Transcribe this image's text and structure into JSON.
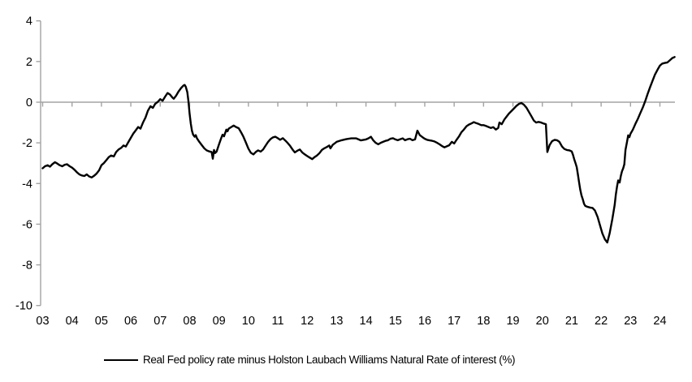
{
  "chart_data": {
    "type": "line",
    "title": "",
    "xlabel": "",
    "ylabel": "",
    "ylim": [
      -10,
      4
    ],
    "y_ticks": [
      4,
      2,
      0,
      -2,
      -4,
      -6,
      -8,
      -10
    ],
    "x_tick_labels": [
      "03",
      "04",
      "05",
      "06",
      "07",
      "08",
      "09",
      "10",
      "11",
      "12",
      "13",
      "14",
      "15",
      "16",
      "17",
      "18",
      "19",
      "20",
      "21",
      "22",
      "23",
      "24"
    ],
    "x_start_year": 2003,
    "grid": "zero-line-only",
    "legend_position": "bottom-left-of-center",
    "series": [
      {
        "name": "Real Fed policy rate minus Holston Laubach Williams Natural Rate of interest (%)",
        "color": "#000000",
        "points": [
          [
            2003.0,
            -3.25
          ],
          [
            2003.08,
            -3.15
          ],
          [
            2003.17,
            -3.1
          ],
          [
            2003.25,
            -3.17
          ],
          [
            2003.33,
            -3.05
          ],
          [
            2003.42,
            -2.95
          ],
          [
            2003.5,
            -3.02
          ],
          [
            2003.58,
            -3.1
          ],
          [
            2003.67,
            -3.15
          ],
          [
            2003.75,
            -3.08
          ],
          [
            2003.83,
            -3.05
          ],
          [
            2003.92,
            -3.15
          ],
          [
            2004.0,
            -3.22
          ],
          [
            2004.08,
            -3.32
          ],
          [
            2004.17,
            -3.45
          ],
          [
            2004.25,
            -3.55
          ],
          [
            2004.33,
            -3.6
          ],
          [
            2004.42,
            -3.63
          ],
          [
            2004.5,
            -3.55
          ],
          [
            2004.58,
            -3.65
          ],
          [
            2004.67,
            -3.7
          ],
          [
            2004.75,
            -3.62
          ],
          [
            2004.83,
            -3.52
          ],
          [
            2004.92,
            -3.35
          ],
          [
            2005.0,
            -3.1
          ],
          [
            2005.08,
            -3.0
          ],
          [
            2005.17,
            -2.85
          ],
          [
            2005.25,
            -2.7
          ],
          [
            2005.33,
            -2.62
          ],
          [
            2005.42,
            -2.67
          ],
          [
            2005.5,
            -2.45
          ],
          [
            2005.58,
            -2.33
          ],
          [
            2005.67,
            -2.25
          ],
          [
            2005.75,
            -2.13
          ],
          [
            2005.83,
            -2.18
          ],
          [
            2005.92,
            -1.95
          ],
          [
            2006.0,
            -1.75
          ],
          [
            2006.08,
            -1.55
          ],
          [
            2006.17,
            -1.38
          ],
          [
            2006.25,
            -1.22
          ],
          [
            2006.33,
            -1.3
          ],
          [
            2006.42,
            -0.98
          ],
          [
            2006.5,
            -0.75
          ],
          [
            2006.58,
            -0.42
          ],
          [
            2006.67,
            -0.2
          ],
          [
            2006.75,
            -0.28
          ],
          [
            2006.83,
            -0.08
          ],
          [
            2006.92,
            0.02
          ],
          [
            2007.0,
            0.15
          ],
          [
            2007.08,
            0.07
          ],
          [
            2007.17,
            0.28
          ],
          [
            2007.25,
            0.45
          ],
          [
            2007.33,
            0.38
          ],
          [
            2007.42,
            0.22
          ],
          [
            2007.46,
            0.17
          ],
          [
            2007.54,
            0.32
          ],
          [
            2007.62,
            0.52
          ],
          [
            2007.71,
            0.7
          ],
          [
            2007.79,
            0.82
          ],
          [
            2007.83,
            0.85
          ],
          [
            2007.87,
            0.76
          ],
          [
            2007.92,
            0.5
          ],
          [
            2007.96,
            0.05
          ],
          [
            2008.0,
            -0.55
          ],
          [
            2008.04,
            -1.05
          ],
          [
            2008.08,
            -1.4
          ],
          [
            2008.12,
            -1.6
          ],
          [
            2008.17,
            -1.7
          ],
          [
            2008.21,
            -1.62
          ],
          [
            2008.25,
            -1.78
          ],
          [
            2008.33,
            -1.95
          ],
          [
            2008.42,
            -2.12
          ],
          [
            2008.5,
            -2.27
          ],
          [
            2008.58,
            -2.37
          ],
          [
            2008.67,
            -2.42
          ],
          [
            2008.75,
            -2.45
          ],
          [
            2008.79,
            -2.78
          ],
          [
            2008.83,
            -2.35
          ],
          [
            2008.87,
            -2.5
          ],
          [
            2008.92,
            -2.43
          ],
          [
            2009.0,
            -2.08
          ],
          [
            2009.08,
            -1.75
          ],
          [
            2009.12,
            -1.6
          ],
          [
            2009.17,
            -1.68
          ],
          [
            2009.25,
            -1.35
          ],
          [
            2009.29,
            -1.43
          ],
          [
            2009.33,
            -1.3
          ],
          [
            2009.42,
            -1.22
          ],
          [
            2009.5,
            -1.15
          ],
          [
            2009.58,
            -1.22
          ],
          [
            2009.67,
            -1.28
          ],
          [
            2009.75,
            -1.48
          ],
          [
            2009.83,
            -1.7
          ],
          [
            2009.92,
            -2.0
          ],
          [
            2010.0,
            -2.28
          ],
          [
            2010.08,
            -2.48
          ],
          [
            2010.17,
            -2.57
          ],
          [
            2010.25,
            -2.45
          ],
          [
            2010.33,
            -2.37
          ],
          [
            2010.42,
            -2.43
          ],
          [
            2010.5,
            -2.33
          ],
          [
            2010.58,
            -2.15
          ],
          [
            2010.67,
            -1.95
          ],
          [
            2010.75,
            -1.82
          ],
          [
            2010.83,
            -1.73
          ],
          [
            2010.92,
            -1.7
          ],
          [
            2011.0,
            -1.77
          ],
          [
            2011.08,
            -1.85
          ],
          [
            2011.17,
            -1.77
          ],
          [
            2011.25,
            -1.88
          ],
          [
            2011.33,
            -2.0
          ],
          [
            2011.42,
            -2.15
          ],
          [
            2011.5,
            -2.32
          ],
          [
            2011.58,
            -2.47
          ],
          [
            2011.67,
            -2.38
          ],
          [
            2011.75,
            -2.33
          ],
          [
            2011.83,
            -2.47
          ],
          [
            2011.92,
            -2.57
          ],
          [
            2012.0,
            -2.65
          ],
          [
            2012.08,
            -2.72
          ],
          [
            2012.17,
            -2.8
          ],
          [
            2012.25,
            -2.7
          ],
          [
            2012.33,
            -2.62
          ],
          [
            2012.42,
            -2.5
          ],
          [
            2012.5,
            -2.35
          ],
          [
            2012.58,
            -2.27
          ],
          [
            2012.67,
            -2.2
          ],
          [
            2012.75,
            -2.13
          ],
          [
            2012.79,
            -2.27
          ],
          [
            2012.87,
            -2.1
          ],
          [
            2012.96,
            -2.0
          ],
          [
            2013.0,
            -1.95
          ],
          [
            2013.17,
            -1.87
          ],
          [
            2013.33,
            -1.82
          ],
          [
            2013.5,
            -1.78
          ],
          [
            2013.67,
            -1.78
          ],
          [
            2013.83,
            -1.88
          ],
          [
            2013.92,
            -1.85
          ],
          [
            2014.0,
            -1.83
          ],
          [
            2014.08,
            -1.78
          ],
          [
            2014.17,
            -1.7
          ],
          [
            2014.25,
            -1.88
          ],
          [
            2014.33,
            -2.0
          ],
          [
            2014.42,
            -2.07
          ],
          [
            2014.5,
            -2.0
          ],
          [
            2014.58,
            -1.95
          ],
          [
            2014.67,
            -1.9
          ],
          [
            2014.75,
            -1.87
          ],
          [
            2014.83,
            -1.8
          ],
          [
            2014.92,
            -1.77
          ],
          [
            2015.0,
            -1.83
          ],
          [
            2015.08,
            -1.87
          ],
          [
            2015.17,
            -1.82
          ],
          [
            2015.25,
            -1.78
          ],
          [
            2015.33,
            -1.87
          ],
          [
            2015.42,
            -1.82
          ],
          [
            2015.5,
            -1.8
          ],
          [
            2015.58,
            -1.87
          ],
          [
            2015.67,
            -1.83
          ],
          [
            2015.75,
            -1.4
          ],
          [
            2015.83,
            -1.62
          ],
          [
            2015.92,
            -1.72
          ],
          [
            2016.0,
            -1.8
          ],
          [
            2016.08,
            -1.85
          ],
          [
            2016.17,
            -1.88
          ],
          [
            2016.25,
            -1.9
          ],
          [
            2016.33,
            -1.93
          ],
          [
            2016.42,
            -2.0
          ],
          [
            2016.5,
            -2.07
          ],
          [
            2016.58,
            -2.15
          ],
          [
            2016.67,
            -2.22
          ],
          [
            2016.75,
            -2.17
          ],
          [
            2016.83,
            -2.12
          ],
          [
            2016.92,
            -1.95
          ],
          [
            2017.0,
            -2.03
          ],
          [
            2017.08,
            -1.85
          ],
          [
            2017.17,
            -1.67
          ],
          [
            2017.25,
            -1.47
          ],
          [
            2017.33,
            -1.35
          ],
          [
            2017.42,
            -1.18
          ],
          [
            2017.5,
            -1.1
          ],
          [
            2017.58,
            -1.05
          ],
          [
            2017.67,
            -0.98
          ],
          [
            2017.75,
            -1.03
          ],
          [
            2017.83,
            -1.07
          ],
          [
            2017.92,
            -1.13
          ],
          [
            2018.0,
            -1.13
          ],
          [
            2018.08,
            -1.17
          ],
          [
            2018.17,
            -1.22
          ],
          [
            2018.25,
            -1.27
          ],
          [
            2018.33,
            -1.23
          ],
          [
            2018.42,
            -1.35
          ],
          [
            2018.5,
            -1.27
          ],
          [
            2018.54,
            -1.0
          ],
          [
            2018.62,
            -1.08
          ],
          [
            2018.71,
            -0.85
          ],
          [
            2018.79,
            -0.7
          ],
          [
            2018.87,
            -0.55
          ],
          [
            2018.96,
            -0.42
          ],
          [
            2019.04,
            -0.3
          ],
          [
            2019.12,
            -0.18
          ],
          [
            2019.21,
            -0.08
          ],
          [
            2019.29,
            -0.04
          ],
          [
            2019.37,
            -0.12
          ],
          [
            2019.46,
            -0.27
          ],
          [
            2019.54,
            -0.47
          ],
          [
            2019.62,
            -0.67
          ],
          [
            2019.71,
            -0.9
          ],
          [
            2019.79,
            -1.0
          ],
          [
            2019.87,
            -0.97
          ],
          [
            2019.96,
            -1.0
          ],
          [
            2020.04,
            -1.05
          ],
          [
            2020.12,
            -1.08
          ],
          [
            2020.17,
            -2.45
          ],
          [
            2020.25,
            -2.1
          ],
          [
            2020.33,
            -1.92
          ],
          [
            2020.42,
            -1.85
          ],
          [
            2020.5,
            -1.87
          ],
          [
            2020.58,
            -1.95
          ],
          [
            2020.67,
            -2.18
          ],
          [
            2020.75,
            -2.3
          ],
          [
            2020.83,
            -2.35
          ],
          [
            2020.92,
            -2.37
          ],
          [
            2021.0,
            -2.42
          ],
          [
            2021.04,
            -2.58
          ],
          [
            2021.08,
            -2.78
          ],
          [
            2021.13,
            -3.0
          ],
          [
            2021.17,
            -3.2
          ],
          [
            2021.21,
            -3.55
          ],
          [
            2021.25,
            -3.95
          ],
          [
            2021.29,
            -4.3
          ],
          [
            2021.33,
            -4.58
          ],
          [
            2021.38,
            -4.8
          ],
          [
            2021.42,
            -5.0
          ],
          [
            2021.46,
            -5.1
          ],
          [
            2021.54,
            -5.15
          ],
          [
            2021.63,
            -5.18
          ],
          [
            2021.71,
            -5.2
          ],
          [
            2021.79,
            -5.33
          ],
          [
            2021.88,
            -5.65
          ],
          [
            2021.96,
            -6.05
          ],
          [
            2022.04,
            -6.45
          ],
          [
            2022.13,
            -6.75
          ],
          [
            2022.21,
            -6.9
          ],
          [
            2022.29,
            -6.45
          ],
          [
            2022.38,
            -5.75
          ],
          [
            2022.46,
            -5.05
          ],
          [
            2022.5,
            -4.55
          ],
          [
            2022.54,
            -4.15
          ],
          [
            2022.58,
            -3.85
          ],
          [
            2022.63,
            -3.95
          ],
          [
            2022.67,
            -3.62
          ],
          [
            2022.71,
            -3.4
          ],
          [
            2022.75,
            -3.25
          ],
          [
            2022.79,
            -3.05
          ],
          [
            2022.83,
            -2.35
          ],
          [
            2022.88,
            -1.95
          ],
          [
            2022.92,
            -1.63
          ],
          [
            2022.96,
            -1.72
          ],
          [
            2023.0,
            -1.55
          ],
          [
            2023.08,
            -1.35
          ],
          [
            2023.17,
            -1.05
          ],
          [
            2023.25,
            -0.82
          ],
          [
            2023.33,
            -0.55
          ],
          [
            2023.42,
            -0.25
          ],
          [
            2023.5,
            0.05
          ],
          [
            2023.58,
            0.4
          ],
          [
            2023.67,
            0.75
          ],
          [
            2023.75,
            1.05
          ],
          [
            2023.83,
            1.35
          ],
          [
            2023.92,
            1.6
          ],
          [
            2024.0,
            1.8
          ],
          [
            2024.08,
            1.9
          ],
          [
            2024.17,
            1.93
          ],
          [
            2024.25,
            1.95
          ],
          [
            2024.33,
            2.05
          ],
          [
            2024.42,
            2.17
          ],
          [
            2024.5,
            2.22
          ]
        ]
      }
    ]
  },
  "colors": {
    "line": "#000000",
    "axis": "#a3a3a3",
    "text": "#000000",
    "background": "#ffffff"
  }
}
